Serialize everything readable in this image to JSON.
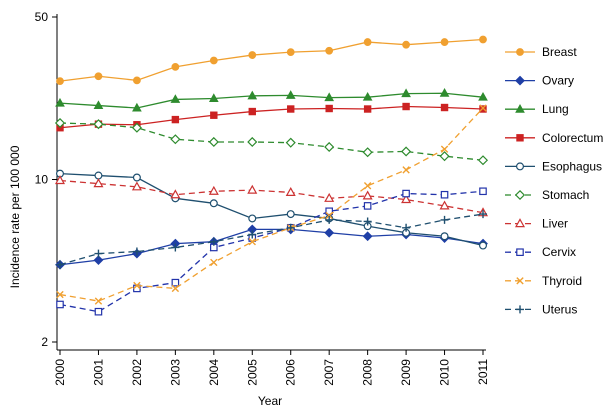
{
  "chart_data": {
    "type": "line",
    "title": "",
    "xlabel": "Year",
    "ylabel": "Incidence rate per 100 000",
    "yscale": "log",
    "ylim": [
      2,
      50
    ],
    "yticks": [
      2,
      10,
      50
    ],
    "ytick_labels": [
      "2",
      "10",
      "50"
    ],
    "categories": [
      "2000",
      "2001",
      "2002",
      "2003",
      "2004",
      "2005",
      "2006",
      "2007",
      "2008",
      "2009",
      "2010",
      "2011"
    ],
    "grid": false,
    "legend_position": "right",
    "series": [
      {
        "name": "Breast",
        "color": "#f0a030",
        "marker": "circle-filled",
        "dash": "solid",
        "values": [
          26.5,
          27.8,
          26.7,
          30.5,
          32.5,
          34.3,
          35.3,
          35.8,
          39.0,
          38.0,
          39.0,
          40.0
        ]
      },
      {
        "name": "Ovary",
        "color": "#1f3fa6",
        "marker": "diamond-filled",
        "dash": "solid",
        "values": [
          4.3,
          4.5,
          4.8,
          5.3,
          5.4,
          6.1,
          6.1,
          5.9,
          5.7,
          5.8,
          5.6,
          5.3
        ]
      },
      {
        "name": "Lung",
        "color": "#2e8b2e",
        "marker": "triangle-filled",
        "dash": "solid",
        "values": [
          21.3,
          20.8,
          20.3,
          22.1,
          22.3,
          22.9,
          23.0,
          22.5,
          22.6,
          23.4,
          23.5,
          22.6
        ]
      },
      {
        "name": "Colorectum",
        "color": "#cc2222",
        "marker": "square-filled",
        "dash": "solid",
        "values": [
          16.7,
          17.3,
          17.2,
          18.1,
          18.9,
          19.6,
          20.1,
          20.2,
          20.1,
          20.6,
          20.4,
          20.1
        ]
      },
      {
        "name": "Esophagus",
        "color": "#1f4f6f",
        "marker": "circle-hollow",
        "dash": "solid",
        "values": [
          10.6,
          10.4,
          10.2,
          8.3,
          7.9,
          6.8,
          7.1,
          6.8,
          6.3,
          5.9,
          5.7,
          5.2
        ]
      },
      {
        "name": "Stomach",
        "color": "#2e8b2e",
        "marker": "diamond-hollow",
        "dash": "dashed",
        "values": [
          17.5,
          17.3,
          16.7,
          14.9,
          14.5,
          14.5,
          14.4,
          13.8,
          13.1,
          13.2,
          12.6,
          12.1
        ]
      },
      {
        "name": "Liver",
        "color": "#cc3333",
        "marker": "triangle-hollow",
        "dash": "dashed",
        "values": [
          9.9,
          9.6,
          9.3,
          8.6,
          8.9,
          9.0,
          8.8,
          8.3,
          8.5,
          8.2,
          7.7,
          7.2
        ]
      },
      {
        "name": "Cervix",
        "color": "#2233aa",
        "marker": "square-hollow",
        "dash": "dashed",
        "values": [
          2.9,
          2.7,
          3.4,
          3.6,
          5.1,
          5.6,
          6.2,
          7.3,
          7.7,
          8.7,
          8.6,
          8.9
        ]
      },
      {
        "name": "Thyroid",
        "color": "#f0a030",
        "marker": "x",
        "dash": "dashed",
        "values": [
          3.2,
          3.0,
          3.5,
          3.4,
          4.4,
          5.4,
          6.2,
          7.0,
          9.4,
          11.0,
          13.5,
          20.3
        ]
      },
      {
        "name": "Uterus",
        "color": "#1f4f6f",
        "marker": "plus",
        "dash": "dashed",
        "values": [
          4.3,
          4.8,
          4.9,
          5.1,
          5.4,
          5.8,
          6.2,
          6.7,
          6.6,
          6.2,
          6.7,
          7.1
        ]
      }
    ]
  }
}
